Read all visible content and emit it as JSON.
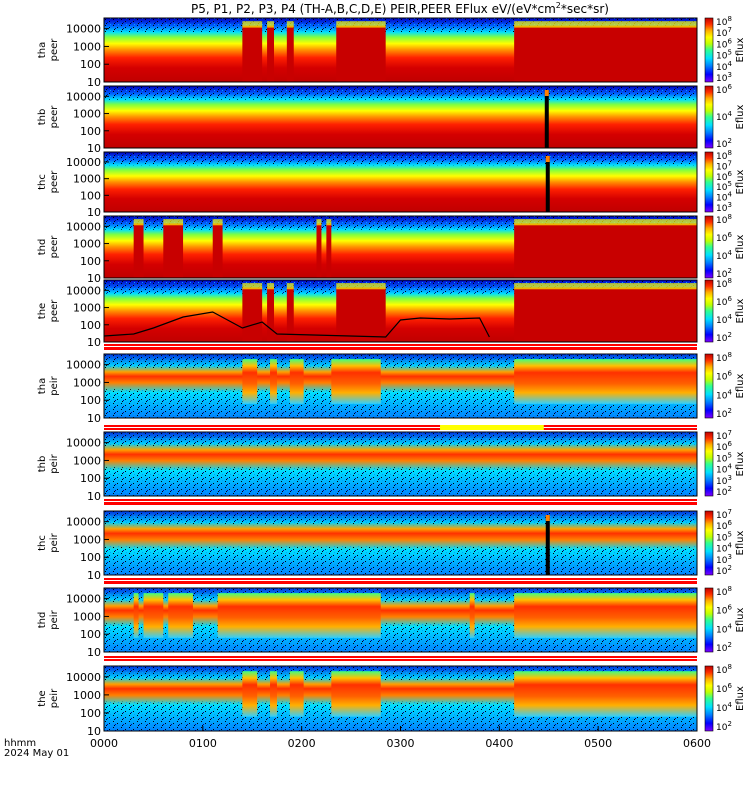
{
  "chart_data": {
    "type": "heatmap",
    "title_parts": [
      "P5, P1, P2, P3, P4 (TH-A,B,C,D,E) PEIR,PEER EFlux eV/(eV*cm",
      "2",
      "*sec*sr)"
    ],
    "x_axis": {
      "label_line1": "hhmm",
      "label_line2": "2024 May 01",
      "ticks": [
        "0000",
        "0100",
        "0200",
        "0300",
        "0400",
        "0500",
        "0600"
      ],
      "range_hours": [
        0,
        6
      ]
    },
    "y_scale": "log",
    "energy_ticks": [
      "10000",
      "1000",
      "100",
      "10"
    ],
    "energy_tick_values": [
      10000,
      1000,
      100,
      10
    ],
    "colorbar_label": "Eflux",
    "colormap": [
      "#7f00ff",
      "#0000ff",
      "#0080ff",
      "#00e0ff",
      "#30ff90",
      "#c0ff00",
      "#ffff00",
      "#ffb000",
      "#ff5000",
      "#ff0000",
      "#b00000"
    ],
    "panels": [
      {
        "probe_label": "tha",
        "species": "peer",
        "cbar_ticks": [
          {
            "b": "10",
            "e": "8"
          },
          {
            "b": "10",
            "e": "7"
          },
          {
            "b": "10",
            "e": "6"
          },
          {
            "b": "10",
            "e": "5"
          },
          {
            "b": "10",
            "e": "4"
          },
          {
            "b": "10",
            "e": "3"
          }
        ],
        "flux_intervals": [
          [
            1.4,
            1.6
          ],
          [
            1.65,
            1.72
          ],
          [
            1.85,
            1.92
          ],
          [
            2.35,
            2.85
          ],
          [
            4.15,
            6.0
          ]
        ],
        "line": false
      },
      {
        "probe_label": "thb",
        "species": "peer",
        "cbar_ticks": [
          {
            "b": "10",
            "e": "6"
          },
          {
            "b": "10",
            "e": "4"
          },
          {
            "b": "10",
            "e": "2"
          }
        ],
        "flux_intervals": [],
        "spike_hour": 4.48,
        "line": false
      },
      {
        "probe_label": "thc",
        "species": "peer",
        "cbar_ticks": [
          {
            "b": "10",
            "e": "8"
          },
          {
            "b": "10",
            "e": "7"
          },
          {
            "b": "10",
            "e": "6"
          },
          {
            "b": "10",
            "e": "5"
          },
          {
            "b": "10",
            "e": "4"
          },
          {
            "b": "10",
            "e": "3"
          }
        ],
        "flux_intervals": [],
        "spike_hour": 4.49,
        "line": false
      },
      {
        "probe_label": "thd",
        "species": "peer",
        "cbar_ticks": [
          {
            "b": "10",
            "e": "8"
          },
          {
            "b": "10",
            "e": "6"
          },
          {
            "b": "10",
            "e": "4"
          },
          {
            "b": "10",
            "e": "2"
          }
        ],
        "flux_intervals": [
          [
            0.3,
            0.4
          ],
          [
            0.6,
            0.8
          ],
          [
            1.1,
            1.2
          ],
          [
            2.15,
            2.2
          ],
          [
            2.25,
            2.3
          ],
          [
            4.15,
            6.0
          ]
        ],
        "line": false
      },
      {
        "probe_label": "the",
        "species": "peer",
        "cbar_ticks": [
          {
            "b": "10",
            "e": "8"
          },
          {
            "b": "10",
            "e": "6"
          },
          {
            "b": "10",
            "e": "4"
          },
          {
            "b": "10",
            "e": "2"
          }
        ],
        "flux_intervals": [
          [
            1.4,
            1.6
          ],
          [
            1.65,
            1.72
          ],
          [
            1.85,
            1.92
          ],
          [
            2.35,
            2.85
          ],
          [
            4.15,
            6.0
          ]
        ],
        "line": true
      },
      {
        "probe_label": "tha",
        "species": "peir",
        "cbar_ticks": [
          {
            "b": "10",
            "e": "8"
          },
          {
            "b": "10",
            "e": "6"
          },
          {
            "b": "10",
            "e": "4"
          },
          {
            "b": "10",
            "e": "2"
          }
        ],
        "flux_intervals": [
          [
            1.4,
            1.55
          ],
          [
            1.68,
            1.75
          ],
          [
            1.88,
            2.02
          ],
          [
            2.3,
            2.8
          ],
          [
            4.15,
            6.0
          ]
        ],
        "line": false
      },
      {
        "probe_label": "thb",
        "species": "peir",
        "cbar_ticks": [
          {
            "b": "10",
            "e": "7"
          },
          {
            "b": "10",
            "e": "6"
          },
          {
            "b": "10",
            "e": "5"
          },
          {
            "b": "10",
            "e": "4"
          },
          {
            "b": "10",
            "e": "3"
          },
          {
            "b": "10",
            "e": "2"
          }
        ],
        "flux_intervals": [],
        "line": false
      },
      {
        "probe_label": "thc",
        "species": "peir",
        "cbar_ticks": [
          {
            "b": "10",
            "e": "7"
          },
          {
            "b": "10",
            "e": "6"
          },
          {
            "b": "10",
            "e": "5"
          },
          {
            "b": "10",
            "e": "4"
          },
          {
            "b": "10",
            "e": "3"
          },
          {
            "b": "10",
            "e": "2"
          }
        ],
        "flux_intervals": [],
        "spike_hour": 4.49,
        "line": false
      },
      {
        "probe_label": "thd",
        "species": "peir",
        "cbar_ticks": [
          {
            "b": "10",
            "e": "8"
          },
          {
            "b": "10",
            "e": "6"
          },
          {
            "b": "10",
            "e": "4"
          },
          {
            "b": "10",
            "e": "2"
          }
        ],
        "flux_intervals": [
          [
            0.3,
            0.35
          ],
          [
            0.4,
            0.6
          ],
          [
            0.65,
            0.9
          ],
          [
            1.15,
            2.8
          ],
          [
            3.7,
            3.75
          ],
          [
            4.15,
            6.0
          ]
        ],
        "line": false
      },
      {
        "probe_label": "the",
        "species": "peir",
        "cbar_ticks": [
          {
            "b": "10",
            "e": "8"
          },
          {
            "b": "10",
            "e": "6"
          },
          {
            "b": "10",
            "e": "4"
          },
          {
            "b": "10",
            "e": "2"
          }
        ],
        "flux_intervals": [
          [
            1.4,
            1.55
          ],
          [
            1.68,
            1.75
          ],
          [
            1.88,
            2.02
          ],
          [
            2.3,
            2.8
          ],
          [
            4.15,
            6.0
          ]
        ],
        "line": false
      }
    ]
  }
}
